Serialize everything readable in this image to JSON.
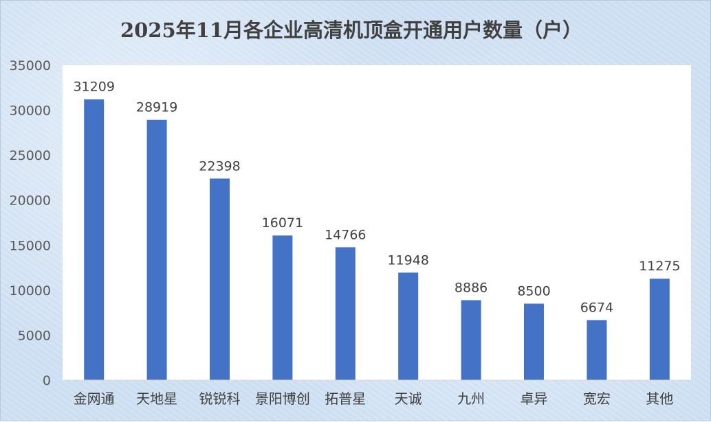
{
  "chart_data": {
    "type": "bar",
    "title": "2025年11月各企业高清机顶盒开通用户数量（户）",
    "categories": [
      "金网通",
      "天地星",
      "锐锐科",
      "景阳博创",
      "拓普星",
      "天诚",
      "九州",
      "卓异",
      "宽宏",
      "其他"
    ],
    "values": [
      31209,
      28919,
      22398,
      16071,
      14766,
      11948,
      8886,
      8500,
      6674,
      11275
    ],
    "xlabel": "",
    "ylabel": "",
    "ylim": [
      0,
      35000
    ],
    "yticks": [
      0,
      5000,
      10000,
      15000,
      20000,
      25000,
      30000,
      35000
    ],
    "grid": false,
    "legend": "none",
    "data_labels": true,
    "colors": {
      "bar": "#4472C4",
      "plot_background": "#FFFFFF",
      "axis_line": "#D9D9D9"
    }
  }
}
